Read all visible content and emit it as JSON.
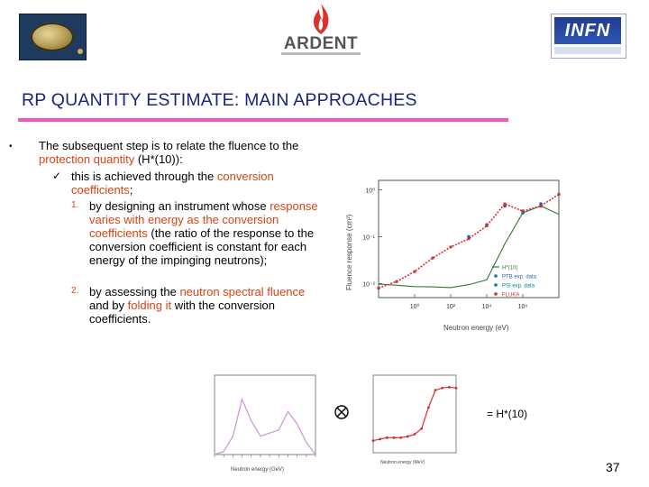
{
  "header": {
    "ardent_logo_text": "ARDENT",
    "infn_logo_text": "INFN"
  },
  "slide": {
    "title": "RP QUANTITY ESTIMATE: MAIN APPROACHES",
    "bullet": "•",
    "para1_a": "The subsequent step is to relate the fluence to the ",
    "para1_hl": "protection quantity",
    "para1_b": " (H*(10)):",
    "check_mark": "✓",
    "check_a": "this is achieved through the ",
    "check_hl": "conversion coefficients",
    "check_b": ";",
    "item1_num": "1.",
    "item1_a": "by designing an instrument whose ",
    "item1_hl": "response varies with energy as the conversion coefficients",
    "item1_b": " (the ratio of the response to the conversion coefficient is constant for each energy of the impinging neutrons);",
    "item2_num": "2.",
    "item2_a": "by assessing the ",
    "item2_hl1": "neutron spectral fluence",
    "item2_mid": " and by ",
    "item2_hl2": "folding it",
    "item2_b": " with the conversion coefficients.",
    "operator": "⊗",
    "equals_label": "= H*(10)",
    "page_number": "37"
  },
  "colors": {
    "title": "#1a237e",
    "title_bar": "#f05ab4",
    "highlight": "#d84315"
  },
  "chart_data": [
    {
      "type": "line",
      "title": "",
      "xlabel": "Neutron energy (eV)",
      "ylabel": "Fluence response (cm²)",
      "x_scale": "log",
      "y_scale": "log",
      "xticks": [
        "10⁰",
        "10²",
        "10⁴",
        "10⁶"
      ],
      "yticks": [
        "10⁰",
        "10⁻¹",
        "10⁻²"
      ],
      "legend_position": "bottom-right",
      "legend": [
        "H*(10)",
        "PTB exp. data",
        "PSI exp. data",
        "FLUKA"
      ],
      "series": [
        {
          "name": "H*(10)",
          "color": "#2e7d32",
          "x": [
            0.01,
            0.1,
            1,
            10,
            100,
            1000,
            10000,
            100000,
            1000000,
            10000000,
            100000000
          ],
          "y": [
            0.0098,
            0.0092,
            0.0086,
            0.0085,
            0.0082,
            0.0095,
            0.012,
            0.07,
            0.32,
            0.45,
            0.3
          ]
        },
        {
          "name": "PTB exp. data",
          "color": "#1565c0",
          "x": [
            1000,
            10000,
            100000,
            1000000,
            10000000
          ],
          "y": [
            0.1,
            0.18,
            0.45,
            0.35,
            0.5
          ]
        },
        {
          "name": "PSI exp. data",
          "color": "#00838f",
          "x": [
            1000000,
            10000000
          ],
          "y": [
            0.32,
            0.45
          ]
        },
        {
          "name": "FLUKA",
          "color": "#d32f2f",
          "x": [
            0.01,
            0.1,
            1,
            10,
            100,
            1000,
            10000,
            100000,
            1000000,
            10000000,
            100000000
          ],
          "y": [
            0.008,
            0.011,
            0.018,
            0.035,
            0.06,
            0.09,
            0.17,
            0.5,
            0.35,
            0.45,
            0.8
          ]
        }
      ]
    },
    {
      "type": "line",
      "title": "",
      "xlabel": "Neutron energy (GeV)",
      "ylabel": "",
      "x_scale": "log",
      "series": [
        {
          "name": "",
          "color": "#ce93d8",
          "x": [
            1e-11,
            1e-10,
            1e-09,
            1e-08,
            1e-07,
            1e-06,
            1e-05,
            0.0001,
            0.001,
            0.01,
            0.1,
            1
          ],
          "y": [
            0,
            0.05,
            0.3,
            0.9,
            0.55,
            0.3,
            0.35,
            0.4,
            0.7,
            0.5,
            0.2,
            0
          ]
        }
      ]
    },
    {
      "type": "line",
      "title": "",
      "xlabel": "Neutron energy (MeV)",
      "ylabel": "",
      "x_scale": "log",
      "series": [
        {
          "name": "",
          "color": "#d32f2f",
          "x": [
            1e-09,
            1e-08,
            1e-07,
            1e-06,
            1e-05,
            0.0001,
            0.001,
            0.01,
            0.1,
            1,
            10,
            100,
            1000
          ],
          "y": [
            8,
            9,
            10,
            10,
            10,
            11,
            13,
            20,
            100,
            380,
            450,
            480,
            450
          ]
        }
      ]
    }
  ]
}
